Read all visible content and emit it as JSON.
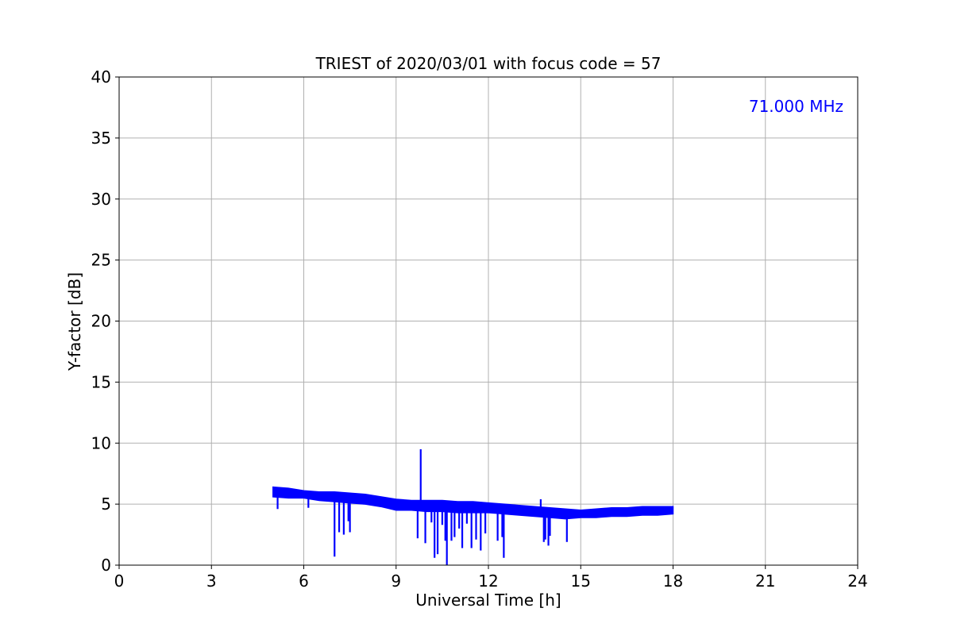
{
  "chart_data": {
    "type": "line",
    "title": "TRIEST of 2020/03/01 with focus code = 57",
    "xlabel": "Universal Time [h]",
    "ylabel": "Y-factor [dB]",
    "xlim": [
      0,
      24
    ],
    "ylim": [
      0,
      40
    ],
    "xticks": [
      0,
      3,
      6,
      9,
      12,
      15,
      18,
      21,
      24
    ],
    "yticks": [
      0,
      5,
      10,
      15,
      20,
      25,
      30,
      35,
      40
    ],
    "grid": true,
    "annotation": {
      "text": "71.000 MHz",
      "color": "#0000ff",
      "placement": "top-right"
    },
    "series": [
      {
        "color": "#0000ff",
        "band": {
          "x": [
            5.0,
            5.5,
            6.0,
            6.5,
            7.0,
            7.5,
            8.0,
            8.5,
            9.0,
            9.5,
            10.0,
            10.5,
            11.0,
            11.5,
            12.0,
            12.5,
            13.0,
            13.5,
            14.0,
            14.5,
            15.0,
            15.5,
            16.0,
            16.5,
            17.0,
            17.5,
            18.0
          ],
          "upper": [
            6.4,
            6.3,
            6.1,
            6.0,
            6.0,
            5.9,
            5.8,
            5.6,
            5.4,
            5.3,
            5.3,
            5.3,
            5.2,
            5.2,
            5.1,
            5.0,
            4.9,
            4.8,
            4.7,
            4.6,
            4.5,
            4.6,
            4.7,
            4.7,
            4.8,
            4.8,
            4.8
          ],
          "lower": [
            5.6,
            5.5,
            5.5,
            5.3,
            5.2,
            5.1,
            5.0,
            4.8,
            4.5,
            4.5,
            4.4,
            4.4,
            4.3,
            4.3,
            4.3,
            4.2,
            4.1,
            4.0,
            3.9,
            3.8,
            3.9,
            3.9,
            4.0,
            4.0,
            4.1,
            4.1,
            4.2
          ]
        },
        "spikes": [
          {
            "x": 5.15,
            "y": 4.6
          },
          {
            "x": 6.15,
            "y": 4.7
          },
          {
            "x": 7.0,
            "y": 0.7
          },
          {
            "x": 7.15,
            "y": 2.7
          },
          {
            "x": 7.3,
            "y": 2.5
          },
          {
            "x": 7.45,
            "y": 3.6
          },
          {
            "x": 7.5,
            "y": 2.7
          },
          {
            "x": 9.7,
            "y": 2.2
          },
          {
            "x": 9.8,
            "y": 9.5
          },
          {
            "x": 9.95,
            "y": 1.8
          },
          {
            "x": 10.15,
            "y": 3.5
          },
          {
            "x": 10.25,
            "y": 0.6
          },
          {
            "x": 10.35,
            "y": 0.9
          },
          {
            "x": 10.5,
            "y": 3.3
          },
          {
            "x": 10.6,
            "y": 2.0
          },
          {
            "x": 10.65,
            "y": 0.0
          },
          {
            "x": 10.8,
            "y": 2.0
          },
          {
            "x": 10.9,
            "y": 2.3
          },
          {
            "x": 11.05,
            "y": 3.0
          },
          {
            "x": 11.15,
            "y": 1.4
          },
          {
            "x": 11.3,
            "y": 3.4
          },
          {
            "x": 11.45,
            "y": 1.4
          },
          {
            "x": 11.6,
            "y": 2.1
          },
          {
            "x": 11.75,
            "y": 1.2
          },
          {
            "x": 11.9,
            "y": 2.6
          },
          {
            "x": 12.3,
            "y": 2.0
          },
          {
            "x": 12.45,
            "y": 2.3
          },
          {
            "x": 12.5,
            "y": 0.6
          },
          {
            "x": 13.7,
            "y": 5.4
          },
          {
            "x": 13.8,
            "y": 1.9
          },
          {
            "x": 13.85,
            "y": 2.1
          },
          {
            "x": 13.95,
            "y": 1.6
          },
          {
            "x": 14.0,
            "y": 2.4
          },
          {
            "x": 14.55,
            "y": 1.9
          }
        ]
      }
    ]
  }
}
